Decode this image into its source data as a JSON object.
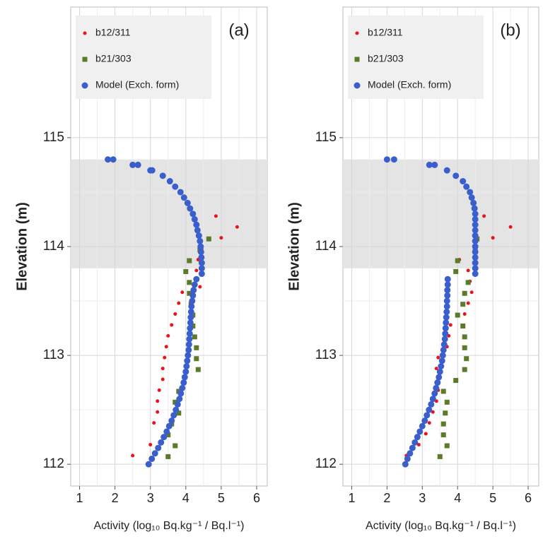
{
  "chart_data": [
    {
      "type": "scatter",
      "title": "(a)",
      "xlabel": "Activity (log₁₀ Bq.kg⁻¹ / Bq.l⁻¹)",
      "ylabel": "Elevation (m)",
      "xlim": [
        0.75,
        6.3
      ],
      "ylim": [
        111.8,
        116.2
      ],
      "xticks": [
        1,
        2,
        3,
        4,
        5,
        6
      ],
      "yticks": [
        112,
        113,
        114,
        115
      ],
      "grid": true,
      "legend": "top-left",
      "band": [
        113.8,
        114.8
      ],
      "series": [
        {
          "name": "b12/311",
          "color": "#e8141a",
          "marker": "circle",
          "x": [
            5.45,
            4.85,
            5.0,
            4.45,
            4.35,
            4.3,
            4.4,
            3.9,
            3.8,
            3.7,
            3.6,
            3.5,
            3.45,
            3.4,
            3.35,
            3.35,
            3.25,
            3.2,
            3.2,
            3.1,
            3.0,
            2.5
          ],
          "values": [
            114.18,
            114.28,
            114.08,
            113.98,
            113.88,
            113.78,
            113.63,
            113.58,
            113.48,
            113.38,
            113.28,
            113.18,
            113.08,
            112.98,
            112.88,
            112.78,
            112.68,
            112.58,
            112.48,
            112.38,
            112.18,
            112.08
          ]
        },
        {
          "name": "b21/303",
          "color": "#5b7a2a",
          "marker": "square",
          "x": [
            4.65,
            4.4,
            4.1,
            4.0,
            4.1,
            4.1,
            4.15,
            4.2,
            4.2,
            4.25,
            4.3,
            4.3,
            4.35,
            3.8,
            3.7,
            3.8,
            3.6,
            3.5,
            3.7,
            3.5
          ],
          "values": [
            114.07,
            113.97,
            113.87,
            113.77,
            113.67,
            113.57,
            113.47,
            113.37,
            113.27,
            113.17,
            113.07,
            112.97,
            112.87,
            112.67,
            112.57,
            112.47,
            112.37,
            112.27,
            112.17,
            112.07
          ]
        },
        {
          "name": "Model (Exch. form)",
          "color": "#3a5fcd",
          "marker": "big-circle",
          "x": [
            1.8,
            1.95,
            2.5,
            2.65,
            3.0,
            3.05,
            3.35,
            3.55,
            3.7,
            3.85,
            3.95,
            4.05,
            4.12,
            4.2,
            4.25,
            4.3,
            4.33,
            4.37,
            4.4,
            4.42,
            4.43,
            4.44,
            4.45,
            4.45,
            4.45,
            4.3,
            4.25,
            4.22,
            4.2,
            4.18,
            4.16,
            4.15,
            4.14,
            4.13,
            4.12,
            4.11,
            4.1,
            4.09,
            4.08,
            4.06,
            4.04,
            4.02,
            4.0,
            3.97,
            3.94,
            3.9,
            3.86,
            3.82,
            3.77,
            3.72,
            3.66,
            3.6,
            3.53,
            3.46,
            3.38,
            3.3,
            3.22,
            3.13,
            3.04,
            2.95
          ],
          "values": [
            114.8,
            114.8,
            114.75,
            114.75,
            114.7,
            114.7,
            114.65,
            114.6,
            114.55,
            114.5,
            114.45,
            114.4,
            114.35,
            114.3,
            114.25,
            114.2,
            114.15,
            114.1,
            114.05,
            114.0,
            113.95,
            113.9,
            113.85,
            113.8,
            113.75,
            113.7,
            113.65,
            113.6,
            113.55,
            113.5,
            113.45,
            113.4,
            113.35,
            113.3,
            113.25,
            113.2,
            113.15,
            113.1,
            113.05,
            113.0,
            112.95,
            112.9,
            112.85,
            112.8,
            112.75,
            112.7,
            112.65,
            112.6,
            112.55,
            112.5,
            112.45,
            112.4,
            112.35,
            112.3,
            112.25,
            112.2,
            112.15,
            112.1,
            112.05,
            112.0
          ]
        }
      ]
    },
    {
      "type": "scatter",
      "title": "(b)",
      "xlabel": "Activity (log₁₀ Bq.kg⁻¹ / Bq.l⁻¹)",
      "ylabel": "Elevation (m)",
      "xlim": [
        0.75,
        6.3
      ],
      "ylim": [
        111.8,
        116.2
      ],
      "xticks": [
        1,
        2,
        3,
        4,
        5,
        6
      ],
      "yticks": [
        112,
        113,
        114,
        115
      ],
      "grid": true,
      "legend": "top-left",
      "band": [
        113.8,
        114.8
      ],
      "series": [
        {
          "name": "b12/311",
          "color": "#e8141a",
          "marker": "circle",
          "x": [
            5.5,
            4.75,
            5.0,
            4.5,
            4.05,
            4.3,
            4.35,
            4.4,
            4.3,
            4.2,
            3.8,
            3.75,
            3.7,
            3.45,
            3.4,
            3.45,
            3.45,
            3.4,
            3.3,
            3.2,
            3.1,
            2.9,
            2.55
          ],
          "values": [
            114.18,
            114.28,
            114.08,
            113.98,
            113.88,
            113.78,
            113.68,
            113.58,
            113.48,
            113.38,
            113.28,
            113.18,
            113.08,
            112.98,
            112.88,
            112.78,
            112.68,
            112.58,
            112.48,
            112.38,
            112.28,
            112.18,
            112.08
          ]
        },
        {
          "name": "b21/303",
          "color": "#5b7a2a",
          "marker": "square",
          "x": [
            4.55,
            4.5,
            4.0,
            3.95,
            4.3,
            4.2,
            4.15,
            4.0,
            4.15,
            4.2,
            4.2,
            4.25,
            4.2,
            3.95,
            3.6,
            3.7,
            3.65,
            3.6,
            3.6,
            3.7,
            3.5
          ],
          "values": [
            114.07,
            113.97,
            113.87,
            113.77,
            113.67,
            113.57,
            113.47,
            113.37,
            113.27,
            113.17,
            113.07,
            112.97,
            112.87,
            112.77,
            112.67,
            112.57,
            112.47,
            112.37,
            112.27,
            112.17,
            112.07
          ]
        },
        {
          "name": "Model (Exch. form)",
          "color": "#3a5fcd",
          "marker": "big-circle",
          "x": [
            2.0,
            2.2,
            3.2,
            3.35,
            3.7,
            3.95,
            4.15,
            4.25,
            4.35,
            4.4,
            4.45,
            4.48,
            4.5,
            4.5,
            4.5,
            4.5,
            4.5,
            4.5,
            4.5,
            4.5,
            4.5,
            4.5,
            4.5,
            4.5,
            3.72,
            3.72,
            3.71,
            3.71,
            3.7,
            3.7,
            3.69,
            3.68,
            3.67,
            3.66,
            3.65,
            3.64,
            3.62,
            3.6,
            3.58,
            3.56,
            3.53,
            3.5,
            3.47,
            3.43,
            3.39,
            3.35,
            3.3,
            3.25,
            3.19,
            3.13,
            3.07,
            3.0,
            2.93,
            2.86,
            2.79,
            2.72,
            2.65,
            2.58,
            2.52
          ],
          "values": [
            114.8,
            114.8,
            114.75,
            114.75,
            114.7,
            114.65,
            114.6,
            114.55,
            114.5,
            114.45,
            114.4,
            114.35,
            114.3,
            114.25,
            114.2,
            114.15,
            114.1,
            114.05,
            114.0,
            113.95,
            113.9,
            113.85,
            113.8,
            113.75,
            113.7,
            113.65,
            113.6,
            113.55,
            113.5,
            113.45,
            113.4,
            113.35,
            113.3,
            113.25,
            113.2,
            113.15,
            113.1,
            113.05,
            113.0,
            112.95,
            112.9,
            112.85,
            112.8,
            112.75,
            112.7,
            112.65,
            112.6,
            112.55,
            112.5,
            112.45,
            112.4,
            112.35,
            112.3,
            112.25,
            112.2,
            112.15,
            112.1,
            112.05,
            112.0
          ]
        }
      ]
    }
  ]
}
